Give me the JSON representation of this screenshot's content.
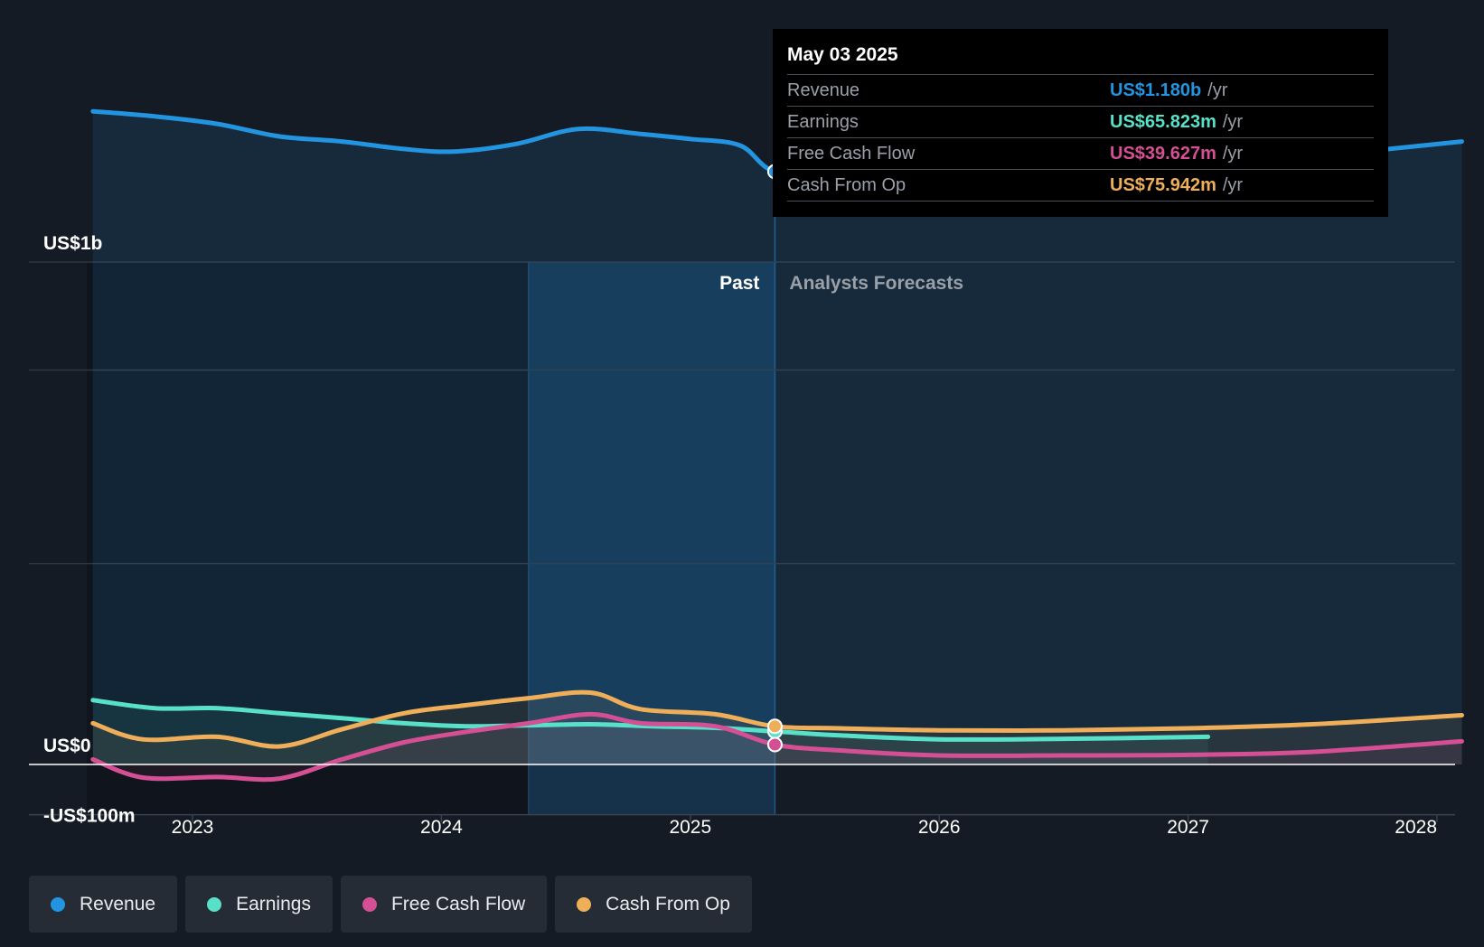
{
  "chart_data": {
    "type": "line",
    "title": "",
    "y_axis": {
      "labels": [
        "US$1b",
        "US$0",
        "-US$100m"
      ],
      "unit": "US$",
      "range_millions": [
        -100,
        1300
      ]
    },
    "x_axis": {
      "ticks": [
        "2023",
        "2024",
        "2025",
        "2026",
        "2027",
        "2028"
      ]
    },
    "regions": {
      "past_label": "Past",
      "forecast_label": "Analysts Forecasts",
      "divider_date": "May 03 2025"
    },
    "series": [
      {
        "name": "Revenue",
        "color": "#2394df",
        "points": [
          [
            2022.6,
            1300
          ],
          [
            2022.85,
            1290
          ],
          [
            2023.1,
            1275
          ],
          [
            2023.35,
            1250
          ],
          [
            2023.6,
            1240
          ],
          [
            2023.85,
            1225
          ],
          [
            2024.05,
            1220
          ],
          [
            2024.3,
            1235
          ],
          [
            2024.55,
            1265
          ],
          [
            2024.8,
            1255
          ],
          [
            2025.0,
            1245
          ],
          [
            2025.2,
            1232
          ],
          [
            2025.34,
            1180
          ],
          [
            2025.6,
            1172
          ],
          [
            2026.0,
            1168
          ],
          [
            2026.4,
            1172
          ],
          [
            2026.8,
            1185
          ],
          [
            2027.2,
            1198
          ],
          [
            2027.6,
            1215
          ],
          [
            2028.1,
            1240
          ]
        ]
      },
      {
        "name": "Earnings",
        "color": "#58e1c8",
        "points": [
          [
            2022.6,
            128
          ],
          [
            2022.85,
            112
          ],
          [
            2023.1,
            112
          ],
          [
            2023.35,
            102
          ],
          [
            2023.6,
            92
          ],
          [
            2023.85,
            82
          ],
          [
            2024.1,
            76
          ],
          [
            2024.35,
            78
          ],
          [
            2024.6,
            80
          ],
          [
            2024.85,
            76
          ],
          [
            2025.1,
            73
          ],
          [
            2025.34,
            65.823
          ],
          [
            2025.6,
            58
          ],
          [
            2026.0,
            50
          ],
          [
            2026.5,
            51
          ],
          [
            2027.08,
            55
          ]
        ]
      },
      {
        "name": "Free Cash Flow",
        "color": "#d44f93",
        "points": [
          [
            2022.6,
            10
          ],
          [
            2022.8,
            -26
          ],
          [
            2023.1,
            -25
          ],
          [
            2023.35,
            -28
          ],
          [
            2023.6,
            10
          ],
          [
            2023.85,
            44
          ],
          [
            2024.1,
            65
          ],
          [
            2024.35,
            82
          ],
          [
            2024.6,
            100
          ],
          [
            2024.8,
            82
          ],
          [
            2025.1,
            76
          ],
          [
            2025.34,
            39.627
          ],
          [
            2025.6,
            28
          ],
          [
            2026.0,
            18
          ],
          [
            2026.5,
            18
          ],
          [
            2027.0,
            19
          ],
          [
            2027.5,
            25
          ],
          [
            2028.1,
            46
          ]
        ]
      },
      {
        "name": "Cash From Op",
        "color": "#efae59",
        "points": [
          [
            2022.6,
            82
          ],
          [
            2022.8,
            50
          ],
          [
            2023.1,
            55
          ],
          [
            2023.35,
            36
          ],
          [
            2023.6,
            70
          ],
          [
            2023.85,
            102
          ],
          [
            2024.1,
            118
          ],
          [
            2024.35,
            132
          ],
          [
            2024.6,
            143
          ],
          [
            2024.8,
            110
          ],
          [
            2025.1,
            100
          ],
          [
            2025.34,
            75.942
          ],
          [
            2025.6,
            72
          ],
          [
            2026.0,
            68
          ],
          [
            2026.5,
            68
          ],
          [
            2027.0,
            72
          ],
          [
            2027.5,
            80
          ],
          [
            2028.1,
            98
          ]
        ]
      }
    ]
  },
  "tooltip": {
    "date": "May 03 2025",
    "rows": [
      {
        "label": "Revenue",
        "value": "US$1.180b",
        "unit": "/yr",
        "color": "#2394df"
      },
      {
        "label": "Earnings",
        "value": "US$65.823m",
        "unit": "/yr",
        "color": "#58e1c8"
      },
      {
        "label": "Free Cash Flow",
        "value": "US$39.627m",
        "unit": "/yr",
        "color": "#d44f93"
      },
      {
        "label": "Cash From Op",
        "value": "US$75.942m",
        "unit": "/yr",
        "color": "#efae59"
      }
    ]
  },
  "legend": [
    {
      "label": "Revenue",
      "color": "#2394df"
    },
    {
      "label": "Earnings",
      "color": "#58e1c8"
    },
    {
      "label": "Free Cash Flow",
      "color": "#d44f93"
    },
    {
      "label": "Cash From Op",
      "color": "#efae59"
    }
  ],
  "colors": {
    "background": "#151b24",
    "past_shade": "#1c3d5a",
    "grid": "#2c3440"
  }
}
